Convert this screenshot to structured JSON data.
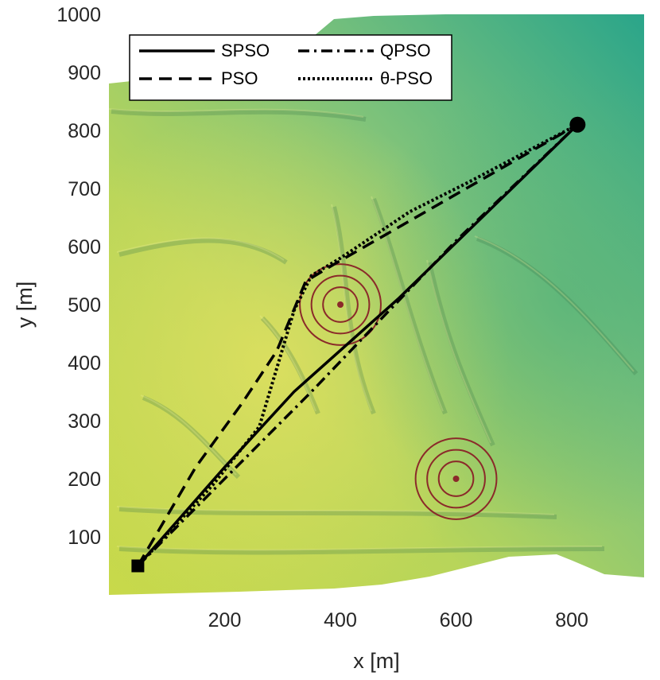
{
  "chart_data": {
    "type": "line",
    "xlabel": "x [m]",
    "ylabel": "y [m]",
    "xlim": [
      0,
      925
    ],
    "ylim": [
      0,
      1000
    ],
    "xticks": [
      "200",
      "400",
      "600",
      "800"
    ],
    "xtick_values": [
      200,
      400,
      600,
      800
    ],
    "yticks": [
      "100",
      "200",
      "300",
      "400",
      "500",
      "600",
      "700",
      "800",
      "900",
      "1000"
    ],
    "ytick_values": [
      100,
      200,
      300,
      400,
      500,
      600,
      700,
      800,
      900,
      1000
    ],
    "background": "terrain elevation map",
    "legend_position": "top-left",
    "start": {
      "x": 50,
      "y": 50,
      "marker": "square"
    },
    "goal": {
      "x": 810,
      "y": 810,
      "marker": "circle"
    },
    "threats": [
      {
        "x": 400,
        "y": 500,
        "radii": [
          30,
          50,
          70
        ]
      },
      {
        "x": 600,
        "y": 200,
        "radii": [
          30,
          50,
          70
        ]
      }
    ],
    "series": [
      {
        "name": "SPSO",
        "style": "solid",
        "points": [
          [
            50,
            50
          ],
          [
            200,
            220
          ],
          [
            320,
            350
          ],
          [
            500,
            510
          ],
          [
            810,
            810
          ]
        ]
      },
      {
        "name": "PSO",
        "style": "dashed",
        "points": [
          [
            50,
            50
          ],
          [
            150,
            220
          ],
          [
            230,
            330
          ],
          [
            290,
            420
          ],
          [
            340,
            540
          ],
          [
            390,
            570
          ],
          [
            810,
            810
          ]
        ]
      },
      {
        "name": "QPSO",
        "style": "dashdot",
        "points": [
          [
            50,
            50
          ],
          [
            190,
            190
          ],
          [
            350,
            350
          ],
          [
            600,
            610
          ],
          [
            810,
            810
          ]
        ]
      },
      {
        "name": "θ-PSO",
        "style": "dotted",
        "points": [
          [
            50,
            50
          ],
          [
            180,
            190
          ],
          [
            260,
            290
          ],
          [
            290,
            390
          ],
          [
            320,
            490
          ],
          [
            350,
            550
          ],
          [
            400,
            580
          ],
          [
            520,
            660
          ],
          [
            620,
            710
          ],
          [
            810,
            810
          ]
        ]
      }
    ]
  },
  "colors": {
    "threat_ring": "#8b2a2a",
    "threat_center": "#8b2a2a",
    "path": "#000000"
  }
}
